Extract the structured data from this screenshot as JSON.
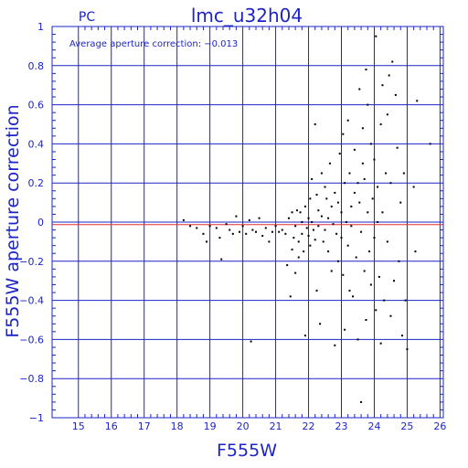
{
  "chart_data": {
    "type": "scatter",
    "title": "lmc_u32h04",
    "subtitle": "PC",
    "annotation": "Average aperture correction: −0.013",
    "xlabel": "F555W",
    "ylabel": "F555W aperture correction",
    "xlim": [
      14.2,
      26.1
    ],
    "ylim": [
      -1,
      1
    ],
    "xticks": [
      15,
      16,
      17,
      18,
      19,
      20,
      21,
      22,
      23,
      24,
      25,
      26
    ],
    "yticks": [
      -1,
      -0.8,
      -0.6,
      -0.4,
      -0.2,
      0,
      0.2,
      0.4,
      0.6,
      0.8,
      1
    ],
    "ytick_labels": [
      "−1",
      "−0.8",
      "−0.6",
      "−0.4",
      "−0.2",
      "0",
      "0.2",
      "0.4",
      "0.6",
      "0.8",
      "1"
    ],
    "grid": true,
    "reference_lines": [
      {
        "y": 0,
        "color": "#1c24c8"
      },
      {
        "y": -0.013,
        "color": "#e0303c"
      }
    ],
    "colors": {
      "axes": "#1c24c8",
      "points": "#000000",
      "average_line": "#e0303c"
    },
    "points": [
      [
        18.2,
        0.01
      ],
      [
        18.4,
        -0.02
      ],
      [
        18.6,
        -0.03
      ],
      [
        18.8,
        -0.06
      ],
      [
        18.9,
        -0.1
      ],
      [
        19.0,
        -0.02
      ],
      [
        19.2,
        -0.03
      ],
      [
        19.3,
        -0.08
      ],
      [
        19.35,
        -0.19
      ],
      [
        19.5,
        -0.01
      ],
      [
        19.6,
        -0.04
      ],
      [
        19.7,
        -0.06
      ],
      [
        19.8,
        0.03
      ],
      [
        19.9,
        -0.05
      ],
      [
        20.0,
        -0.02
      ],
      [
        20.1,
        -0.06
      ],
      [
        20.2,
        0.01
      ],
      [
        20.3,
        -0.04
      ],
      [
        20.4,
        -0.05
      ],
      [
        20.5,
        0.02
      ],
      [
        20.6,
        -0.07
      ],
      [
        20.7,
        -0.03
      ],
      [
        20.8,
        -0.1
      ],
      [
        20.9,
        -0.05
      ],
      [
        20.25,
        -0.61
      ],
      [
        21.0,
        -0.02
      ],
      [
        21.1,
        -0.05
      ],
      [
        21.2,
        -0.04
      ],
      [
        21.3,
        -0.06
      ],
      [
        21.35,
        -0.22
      ],
      [
        21.4,
        0.02
      ],
      [
        21.45,
        -0.38
      ],
      [
        21.5,
        -0.14
      ],
      [
        21.5,
        0.05
      ],
      [
        21.55,
        -0.08
      ],
      [
        21.6,
        -0.26
      ],
      [
        21.6,
        -0.02
      ],
      [
        21.65,
        0.06
      ],
      [
        21.7,
        -0.1
      ],
      [
        21.7,
        -0.18
      ],
      [
        21.75,
        0.05
      ],
      [
        21.8,
        0.0
      ],
      [
        21.8,
        -0.06
      ],
      [
        21.85,
        -0.15
      ],
      [
        21.9,
        0.08
      ],
      [
        21.9,
        -0.58
      ],
      [
        21.95,
        -0.03
      ],
      [
        22.0,
        0.02
      ],
      [
        22.0,
        -0.07
      ],
      [
        22.05,
        0.12
      ],
      [
        22.05,
        -0.12
      ],
      [
        22.1,
        0.22
      ],
      [
        22.1,
        0.0
      ],
      [
        22.15,
        -0.04
      ],
      [
        22.2,
        0.5
      ],
      [
        22.2,
        -0.09
      ],
      [
        22.25,
        0.14
      ],
      [
        22.25,
        -0.35
      ],
      [
        22.3,
        0.06
      ],
      [
        22.3,
        -0.02
      ],
      [
        22.35,
        -0.52
      ],
      [
        22.4,
        0.25
      ],
      [
        22.4,
        0.03
      ],
      [
        22.45,
        -0.1
      ],
      [
        22.5,
        0.18
      ],
      [
        22.5,
        -0.04
      ],
      [
        22.55,
        0.12
      ],
      [
        22.6,
        -0.15
      ],
      [
        22.6,
        0.02
      ],
      [
        22.65,
        0.3
      ],
      [
        22.7,
        -0.25
      ],
      [
        22.7,
        0.08
      ],
      [
        22.75,
        -0.01
      ],
      [
        22.8,
        -0.63
      ],
      [
        22.8,
        0.15
      ],
      [
        22.85,
        -0.06
      ],
      [
        22.9,
        0.1
      ],
      [
        22.9,
        -0.2
      ],
      [
        22.95,
        0.35
      ],
      [
        23.0,
        -0.08
      ],
      [
        23.0,
        0.05
      ],
      [
        23.05,
        0.45
      ],
      [
        23.05,
        -0.27
      ],
      [
        23.1,
        0.2
      ],
      [
        23.1,
        -0.55
      ],
      [
        23.15,
        0.0
      ],
      [
        23.2,
        0.52
      ],
      [
        23.2,
        -0.12
      ],
      [
        23.25,
        0.25
      ],
      [
        23.25,
        -0.35
      ],
      [
        23.3,
        0.08
      ],
      [
        23.3,
        -0.02
      ],
      [
        23.35,
        -0.38
      ],
      [
        23.4,
        0.37
      ],
      [
        23.4,
        0.15
      ],
      [
        23.45,
        -0.18
      ],
      [
        23.5,
        0.2
      ],
      [
        23.5,
        -0.6
      ],
      [
        23.55,
        0.68
      ],
      [
        23.55,
        0.1
      ],
      [
        23.6,
        -0.05
      ],
      [
        23.6,
        -0.92
      ],
      [
        23.65,
        0.48
      ],
      [
        23.65,
        0.3
      ],
      [
        23.7,
        -0.25
      ],
      [
        23.7,
        0.22
      ],
      [
        23.75,
        0.78
      ],
      [
        23.75,
        -0.5
      ],
      [
        23.8,
        0.05
      ],
      [
        23.8,
        0.6
      ],
      [
        23.85,
        -0.15
      ],
      [
        23.9,
        0.4
      ],
      [
        23.9,
        -0.32
      ],
      [
        23.95,
        0.12
      ],
      [
        24.0,
        0.32
      ],
      [
        24.0,
        -0.08
      ],
      [
        24.05,
        0.95
      ],
      [
        24.05,
        -0.45
      ],
      [
        24.1,
        0.0
      ],
      [
        24.1,
        0.18
      ],
      [
        24.15,
        -0.28
      ],
      [
        24.2,
        0.5
      ],
      [
        24.2,
        -0.62
      ],
      [
        24.25,
        0.7
      ],
      [
        24.25,
        0.05
      ],
      [
        24.3,
        -0.4
      ],
      [
        24.35,
        0.25
      ],
      [
        24.4,
        0.55
      ],
      [
        24.4,
        -0.1
      ],
      [
        24.45,
        0.75
      ],
      [
        24.5,
        -0.48
      ],
      [
        24.5,
        0.2
      ],
      [
        24.55,
        0.82
      ],
      [
        24.6,
        -0.3
      ],
      [
        24.65,
        0.65
      ],
      [
        24.7,
        0.38
      ],
      [
        24.75,
        -0.2
      ],
      [
        24.8,
        0.1
      ],
      [
        24.85,
        -0.58
      ],
      [
        24.9,
        0.25
      ],
      [
        24.95,
        -0.4
      ],
      [
        25.0,
        -0.65
      ],
      [
        25.2,
        0.18
      ],
      [
        25.25,
        -0.15
      ],
      [
        25.3,
        0.62
      ],
      [
        25.7,
        0.4
      ]
    ]
  }
}
